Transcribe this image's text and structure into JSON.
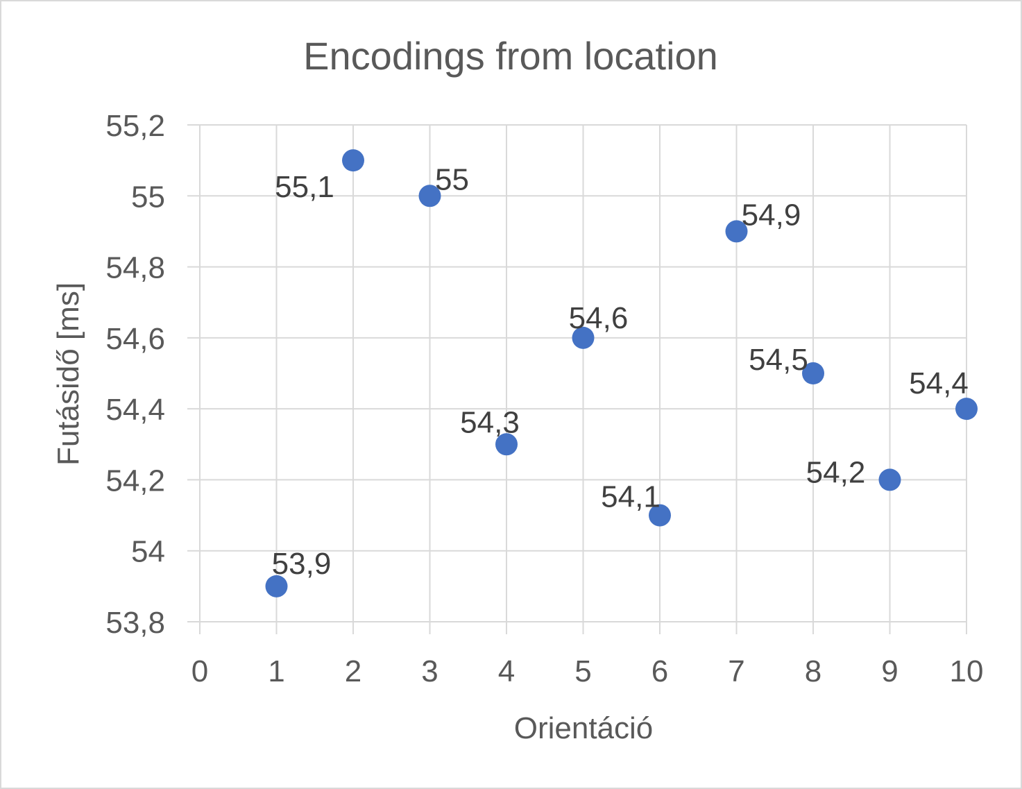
{
  "chart_data": {
    "type": "scatter",
    "title": "Encodings from location",
    "xlabel": "Orientáció",
    "ylabel": "Futásidő [ms]",
    "xlim": [
      0,
      10
    ],
    "ylim": [
      53.8,
      55.2
    ],
    "x_ticks": [
      0,
      1,
      2,
      3,
      4,
      5,
      6,
      7,
      8,
      9,
      10
    ],
    "x_tick_labels": [
      "0",
      "1",
      "2",
      "3",
      "4",
      "5",
      "6",
      "7",
      "8",
      "9",
      "10"
    ],
    "y_ticks": [
      53.8,
      54.0,
      54.2,
      54.4,
      54.6,
      54.8,
      55.0,
      55.2
    ],
    "y_tick_labels": [
      "53,8",
      "54",
      "54,2",
      "54,4",
      "54,6",
      "54,8",
      "55",
      "55,2"
    ],
    "grid": true,
    "marker_color": "#4472c4",
    "points": [
      {
        "x": 1,
        "y": 53.9,
        "label": "53,9",
        "label_position": "above"
      },
      {
        "x": 2,
        "y": 55.1,
        "label": "55,1",
        "label_position": "below-left"
      },
      {
        "x": 3,
        "y": 55.0,
        "label": "55",
        "label_position": "above-right"
      },
      {
        "x": 4,
        "y": 54.3,
        "label": "54,3",
        "label_position": "above-left"
      },
      {
        "x": 5,
        "y": 54.6,
        "label": "54,6",
        "label_position": "above-right"
      },
      {
        "x": 6,
        "y": 54.1,
        "label": "54,1",
        "label_position": "above-left"
      },
      {
        "x": 7,
        "y": 54.9,
        "label": "54,9",
        "label_position": "above-right"
      },
      {
        "x": 8,
        "y": 54.5,
        "label": "54,5",
        "label_position": "above-left"
      },
      {
        "x": 9,
        "y": 54.2,
        "label": "54,2",
        "label_position": "above-left"
      },
      {
        "x": 10,
        "y": 54.4,
        "label": "54,4",
        "label_position": "above-left"
      }
    ]
  }
}
